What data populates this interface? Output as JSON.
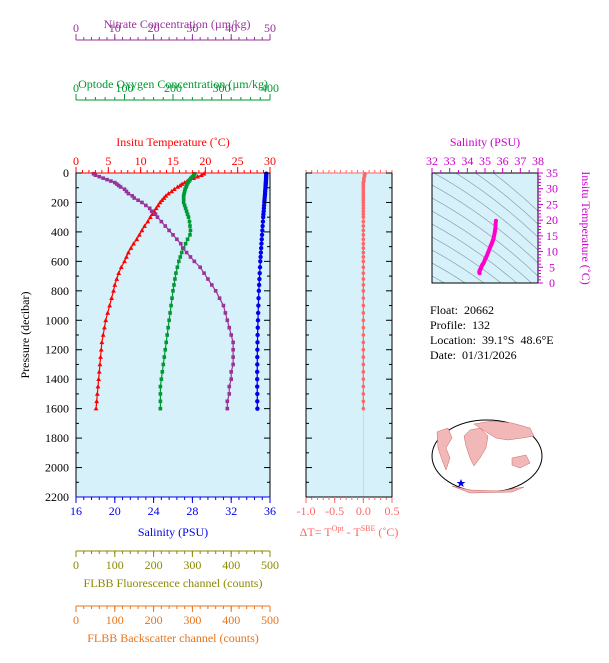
{
  "colors": {
    "temperature": "#ff0000",
    "salinity": "#0000ee",
    "oxygen": "#009933",
    "nitrate": "#993399",
    "fluorescence": "#8b8b00",
    "backscatter": "#e8731a",
    "delta_t": "#ff6666",
    "plot_bg": "#d6f1fa",
    "ts_lines": "#7f95a7",
    "ts_series": "#ff00cc"
  },
  "info": {
    "float": "Float:  20662",
    "profile": "Profile:  132",
    "location": "Location:  39.1°S  48.6°E",
    "date": "Date:  01/31/2026"
  },
  "chart_data": [
    {
      "type": "line",
      "title": "",
      "ylabel": "Pressure (decibar)",
      "ylim": [
        0,
        2200
      ],
      "yticks": [
        0,
        200,
        400,
        600,
        800,
        1000,
        1200,
        1400,
        1600,
        1800,
        2000,
        2200
      ],
      "axes": [
        {
          "label": "Nitrate Concentration (µm/kg)",
          "position": "top",
          "range": [
            0,
            50
          ],
          "ticks": [
            0,
            10,
            20,
            30,
            40,
            50
          ]
        },
        {
          "label": "Optode Oxygen Concentration (µm/kg)",
          "position": "top",
          "range": [
            0,
            400
          ],
          "ticks": [
            0,
            100,
            200,
            300,
            400
          ]
        },
        {
          "label": "Insitu Temperature (˚C)",
          "position": "top",
          "range": [
            0,
            30
          ],
          "ticks": [
            0,
            5,
            10,
            15,
            20,
            25,
            30
          ]
        },
        {
          "label": "Salinity (PSU)",
          "position": "bottom",
          "range": [
            16,
            36
          ],
          "ticks": [
            16,
            20,
            24,
            28,
            32,
            36
          ]
        },
        {
          "label": "FLBB Fluorescence channel (counts)",
          "position": "bottom",
          "range": [
            0,
            500
          ],
          "ticks": [
            0,
            100,
            200,
            300,
            400,
            500
          ]
        },
        {
          "label": "FLBB Backscatter channel (counts)",
          "position": "bottom",
          "range": [
            0,
            500
          ],
          "ticks": [
            0,
            100,
            200,
            300,
            400,
            500
          ]
        }
      ],
      "series": [
        {
          "key": "temperature",
          "pressure": [
            5,
            15,
            25,
            35,
            45,
            55,
            65,
            75,
            85,
            95,
            110,
            125,
            140,
            155,
            170,
            185,
            200,
            220,
            240,
            260,
            280,
            300,
            330,
            360,
            390,
            420,
            450,
            480,
            510,
            540,
            570,
            600,
            640,
            680,
            720,
            760,
            800,
            850,
            900,
            950,
            1000,
            1050,
            1100,
            1150,
            1200,
            1250,
            1300,
            1350,
            1400,
            1450,
            1500,
            1550,
            1600
          ],
          "values": [
            19.8,
            19.4,
            18.8,
            18.2,
            17.6,
            17.2,
            16.8,
            16.4,
            16.1,
            15.7,
            15.2,
            14.8,
            14.3,
            13.9,
            13.6,
            13.3,
            13.0,
            12.7,
            12.4,
            12.1,
            11.8,
            11.5,
            11.1,
            10.6,
            10.2,
            9.8,
            9.4,
            8.9,
            8.5,
            8.1,
            7.8,
            7.5,
            7.0,
            6.6,
            6.3,
            6.0,
            5.8,
            5.5,
            5.2,
            4.9,
            4.6,
            4.4,
            4.2,
            4.0,
            3.9,
            3.8,
            3.7,
            3.6,
            3.5,
            3.4,
            3.3,
            3.2,
            3.1
          ]
        },
        {
          "key": "salinity",
          "pressure": [
            5,
            15,
            25,
            35,
            45,
            55,
            65,
            75,
            85,
            95,
            110,
            125,
            140,
            155,
            170,
            185,
            200,
            220,
            240,
            260,
            280,
            300,
            330,
            360,
            390,
            420,
            450,
            480,
            510,
            540,
            570,
            600,
            640,
            680,
            720,
            760,
            800,
            850,
            900,
            950,
            1000,
            1050,
            1100,
            1150,
            1200,
            1250,
            1300,
            1350,
            1400,
            1450,
            1500,
            1550,
            1600
          ],
          "values": [
            35.62,
            35.61,
            35.6,
            35.6,
            35.59,
            35.58,
            35.57,
            35.56,
            35.55,
            35.54,
            35.52,
            35.5,
            35.49,
            35.47,
            35.45,
            35.43,
            35.41,
            35.39,
            35.37,
            35.35,
            35.32,
            35.3,
            35.27,
            35.24,
            35.21,
            35.18,
            35.15,
            35.12,
            35.09,
            35.06,
            35.03,
            35.0,
            34.97,
            34.94,
            34.91,
            34.88,
            34.85,
            34.82,
            34.8,
            34.78,
            34.76,
            34.74,
            34.72,
            34.71,
            34.7,
            34.69,
            34.69,
            34.68,
            34.68,
            34.68,
            34.69,
            34.69,
            34.7
          ]
        },
        {
          "key": "oxygen",
          "pressure": [
            5,
            15,
            25,
            35,
            45,
            55,
            65,
            75,
            85,
            95,
            110,
            125,
            140,
            155,
            170,
            185,
            200,
            220,
            240,
            260,
            280,
            300,
            330,
            360,
            390,
            420,
            450,
            480,
            510,
            540,
            570,
            600,
            640,
            680,
            720,
            760,
            800,
            850,
            900,
            950,
            1000,
            1050,
            1100,
            1150,
            1200,
            1250,
            1300,
            1350,
            1400,
            1450,
            1500,
            1550,
            1600
          ],
          "values": [
            245,
            243,
            240,
            237,
            235,
            233,
            231,
            229,
            228,
            227,
            225,
            224,
            223,
            222,
            222,
            222,
            222,
            224,
            226,
            228,
            230,
            232,
            234,
            235,
            236,
            235,
            230,
            226,
            222,
            218,
            215,
            212,
            209,
            206,
            204,
            202,
            200,
            198,
            196,
            194,
            192,
            190,
            188,
            186,
            184,
            182,
            180,
            178,
            176,
            174,
            174,
            174,
            174
          ]
        },
        {
          "key": "nitrate",
          "pressure": [
            5,
            15,
            25,
            35,
            45,
            55,
            65,
            75,
            85,
            95,
            110,
            125,
            140,
            155,
            170,
            185,
            200,
            220,
            240,
            260,
            280,
            300,
            330,
            360,
            390,
            420,
            450,
            480,
            510,
            540,
            570,
            600,
            640,
            680,
            720,
            760,
            800,
            850,
            900,
            950,
            1000,
            1050,
            1100,
            1150,
            1200,
            1250,
            1300,
            1350,
            1400,
            1450,
            1500,
            1550,
            1600
          ],
          "values": [
            4.5,
            5.0,
            6.0,
            7.0,
            8.0,
            9.0,
            10.0,
            10.5,
            11.0,
            11.5,
            12.5,
            13.0,
            13.5,
            14.5,
            15.0,
            16.0,
            17.0,
            18.0,
            19.0,
            19.5,
            20.5,
            21.0,
            22.0,
            23.0,
            24.0,
            25.0,
            26.0,
            27.0,
            27.5,
            28.5,
            29.5,
            30.5,
            32.0,
            33.0,
            34.0,
            35.0,
            36.0,
            37.0,
            38.0,
            38.5,
            39.0,
            39.5,
            40.0,
            40.5,
            40.5,
            40.5,
            40.5,
            40.0,
            40.0,
            39.5,
            39.5,
            39.0,
            39.0
          ]
        },
        {
          "key": "delta_t",
          "pressure": [
            5,
            15,
            25,
            35,
            45,
            55,
            65,
            75,
            85,
            95,
            110,
            125,
            140,
            155,
            170,
            185,
            200,
            220,
            240,
            260,
            280,
            300,
            330,
            360,
            390,
            420,
            450,
            480,
            510,
            540,
            570,
            600,
            640,
            680,
            720,
            760,
            800,
            850,
            900,
            950,
            1000,
            1050,
            1100,
            1150,
            1200,
            1250,
            1300,
            1350,
            1400,
            1450,
            1500,
            1550,
            1600
          ],
          "values": [
            0.03,
            0.02,
            0.02,
            0.01,
            0.01,
            0.01,
            0.0,
            0.0,
            0.0,
            0.0,
            0.0,
            0.0,
            0.0,
            0.0,
            0.0,
            0.0,
            0.0,
            0.0,
            0.0,
            0.0,
            0.0,
            0.0,
            0.0,
            0.0,
            0.0,
            0.0,
            0.0,
            0.0,
            0.0,
            0.0,
            0.0,
            0.0,
            0.0,
            0.0,
            0.0,
            0.0,
            0.0,
            0.0,
            0.0,
            0.0,
            0.0,
            0.0,
            0.0,
            0.0,
            0.0,
            0.0,
            0.0,
            0.0,
            0.0,
            0.0,
            0.0,
            0.0,
            0.0
          ]
        }
      ]
    },
    {
      "type": "line",
      "title": "",
      "xlabel": "ΔT= T",
      "xlabel_sup1": "Opt",
      "xlabel_mid": " - T",
      "xlabel_sup2": "SBE",
      "xlabel_unit": " (˚C)",
      "xlim": [
        -1.0,
        0.5
      ],
      "xticks": [
        -1.0,
        -0.5,
        0.0,
        0.5
      ],
      "xtick_labels": [
        "-1.0",
        "-0.5",
        "0.0",
        "0.5"
      ]
    },
    {
      "type": "scatter",
      "title": "",
      "xlabel": "Salinity (PSU)",
      "ylabel": "Insitu Temperature (˚C)",
      "xlim": [
        32,
        38
      ],
      "ylim": [
        0,
        35
      ],
      "xticks": [
        32,
        33,
        34,
        35,
        36,
        37,
        38
      ],
      "yticks": [
        0,
        5,
        10,
        15,
        20,
        25,
        30,
        35
      ]
    }
  ]
}
